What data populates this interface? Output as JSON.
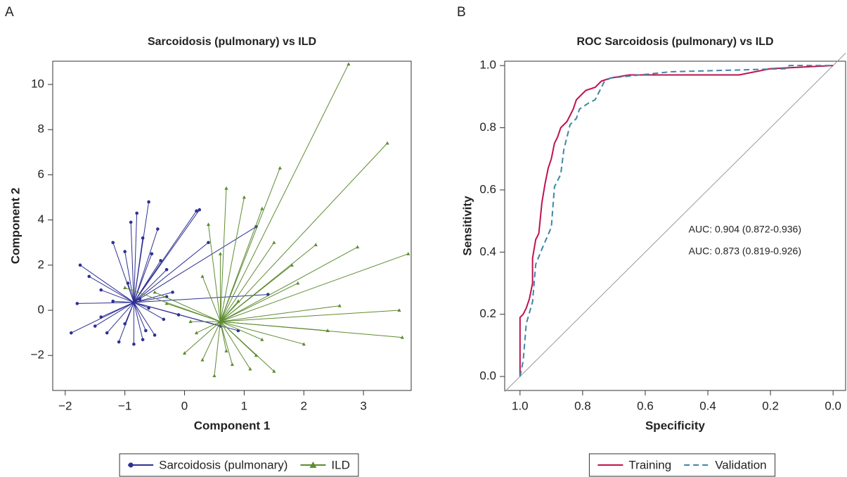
{
  "chart_data": [
    {
      "type": "scatter",
      "panel_label": "A",
      "title": "Sarcoidosis (pulmonary) vs ILD",
      "x_label": "Component 1",
      "y_label": "Component 2",
      "xlim": [
        -2.21,
        3.8
      ],
      "ylim": [
        -3.55,
        11.03
      ],
      "xticks": [
        {
          "value": -2,
          "label": "−2"
        },
        {
          "value": -1,
          "label": "−1"
        },
        0,
        1,
        2,
        3
      ],
      "yticks": [
        {
          "value": -2,
          "label": "−2"
        },
        0,
        2,
        4,
        6,
        8,
        10
      ],
      "legend": "bottom",
      "series": [
        {
          "name": "Sarcoidosis (pulmonary)",
          "color": "#2e3192",
          "marker": "circle",
          "centroid": {
            "x": -0.85,
            "y": 0.35
          },
          "x": [
            -1.9,
            -1.75,
            -1.6,
            -1.5,
            -1.4,
            -1.3,
            -1.2,
            -1.1,
            -1.0,
            -0.95,
            -0.9,
            -0.85,
            -0.8,
            -0.75,
            -0.7,
            -0.65,
            -0.6,
            -0.55,
            -0.5,
            -0.45,
            -0.4,
            -0.35,
            -0.3,
            -0.2,
            -0.1,
            0.2,
            0.25,
            0.4,
            1.2,
            1.4,
            -1.8,
            -1.4,
            -1.2,
            -1.0,
            -0.7,
            -0.6,
            -0.3,
            0.6,
            0.9
          ],
          "values": [
            -1.0,
            2.0,
            1.5,
            -0.7,
            0.9,
            -1.0,
            3.0,
            -1.4,
            2.6,
            1.2,
            3.9,
            -1.5,
            4.3,
            0.5,
            3.2,
            -0.9,
            4.8,
            2.5,
            -1.1,
            3.6,
            2.2,
            -0.4,
            1.8,
            0.8,
            -0.2,
            4.4,
            4.45,
            3.0,
            3.7,
            0.7,
            0.3,
            -0.3,
            0.4,
            -0.6,
            -1.3,
            0.1,
            0.6,
            -0.7,
            -0.9
          ]
        },
        {
          "name": "ILD",
          "color": "#5e8c31",
          "marker": "triangle",
          "centroid": {
            "x": 0.6,
            "y": -0.5
          },
          "x": [
            2.75,
            3.4,
            3.75,
            2.9,
            3.6,
            3.65,
            1.6,
            1.0,
            0.7,
            1.3,
            1.5,
            1.8,
            2.2,
            2.6,
            2.0,
            1.1,
            0.5,
            0.3,
            0.0,
            -0.5,
            -1.0,
            0.2,
            0.4,
            0.6,
            0.8,
            1.2,
            1.5,
            0.1,
            0.3,
            0.9,
            1.9,
            2.4,
            1.3,
            0.7,
            -0.3
          ],
          "values": [
            10.9,
            7.4,
            2.5,
            2.8,
            0.0,
            -1.2,
            6.3,
            5.0,
            5.4,
            4.5,
            3.0,
            2.0,
            2.9,
            0.2,
            -1.5,
            -2.6,
            -2.9,
            -2.2,
            -1.9,
            0.8,
            1.0,
            -1.0,
            3.8,
            2.5,
            -2.4,
            -2.0,
            -2.7,
            -0.5,
            1.5,
            0.4,
            1.2,
            -0.9,
            -1.3,
            -1.8,
            0.3
          ]
        }
      ]
    },
    {
      "type": "line",
      "panel_label": "B",
      "title": "ROC Sarcoidosis (pulmonary) vs ILD",
      "x_label": "Specificity",
      "y_label": "Sensitivity",
      "xlim": [
        1.049,
        -0.04
      ],
      "ylim": [
        -0.045,
        1.014
      ],
      "xticks": [
        {
          "value": 1,
          "label": "1.0"
        },
        {
          "value": 0.8,
          "label": "0.8"
        },
        {
          "value": 0.6,
          "label": "0.6"
        },
        {
          "value": 0.4,
          "label": "0.4"
        },
        {
          "value": 0.2,
          "label": "0.2"
        },
        {
          "value": 0,
          "label": "0.0"
        }
      ],
      "yticks": [
        {
          "value": 0,
          "label": "0.0"
        },
        {
          "value": 0.2,
          "label": "0.2"
        },
        {
          "value": 0.4,
          "label": "0.4"
        },
        {
          "value": 0.6,
          "label": "0.6"
        },
        {
          "value": 0.8,
          "label": "0.8"
        },
        {
          "value": 1,
          "label": "1.0"
        }
      ],
      "diagonal": true,
      "legend": "bottom",
      "annotations": [
        {
          "text": "AUC: 0.904 (0.872-0.936)",
          "color": "#c0124e"
        },
        {
          "text": "AUC: 0.873 (0.819-0.926)",
          "color": "#3d87a8"
        }
      ],
      "series": [
        {
          "name": "Training",
          "color": "#c0124e",
          "line_style": "solid",
          "x": [
            1.0,
            1.0,
            0.99,
            0.98,
            0.97,
            0.96,
            0.96,
            0.95,
            0.94,
            0.93,
            0.92,
            0.91,
            0.9,
            0.89,
            0.88,
            0.87,
            0.85,
            0.83,
            0.82,
            0.81,
            0.79,
            0.76,
            0.74,
            0.71,
            0.65,
            0.3,
            0.2,
            0.0
          ],
          "values": [
            0,
            0.19,
            0.2,
            0.22,
            0.25,
            0.3,
            0.38,
            0.44,
            0.46,
            0.56,
            0.62,
            0.67,
            0.7,
            0.75,
            0.77,
            0.8,
            0.82,
            0.86,
            0.89,
            0.9,
            0.92,
            0.93,
            0.95,
            0.96,
            0.97,
            0.97,
            0.99,
            1.0
          ]
        },
        {
          "name": "Validation",
          "color": "#3d87a8",
          "line_style": "dashed",
          "x": [
            1.0,
            0.99,
            0.98,
            0.96,
            0.95,
            0.93,
            0.9,
            0.89,
            0.87,
            0.86,
            0.84,
            0.82,
            0.81,
            0.78,
            0.76,
            0.73,
            0.71,
            0.52,
            0.15,
            0.14,
            0.0
          ],
          "values": [
            0,
            0.05,
            0.17,
            0.24,
            0.36,
            0.41,
            0.48,
            0.61,
            0.65,
            0.73,
            0.81,
            0.83,
            0.86,
            0.88,
            0.89,
            0.95,
            0.96,
            0.98,
            0.99,
            1.0,
            1.0
          ]
        }
      ]
    }
  ]
}
